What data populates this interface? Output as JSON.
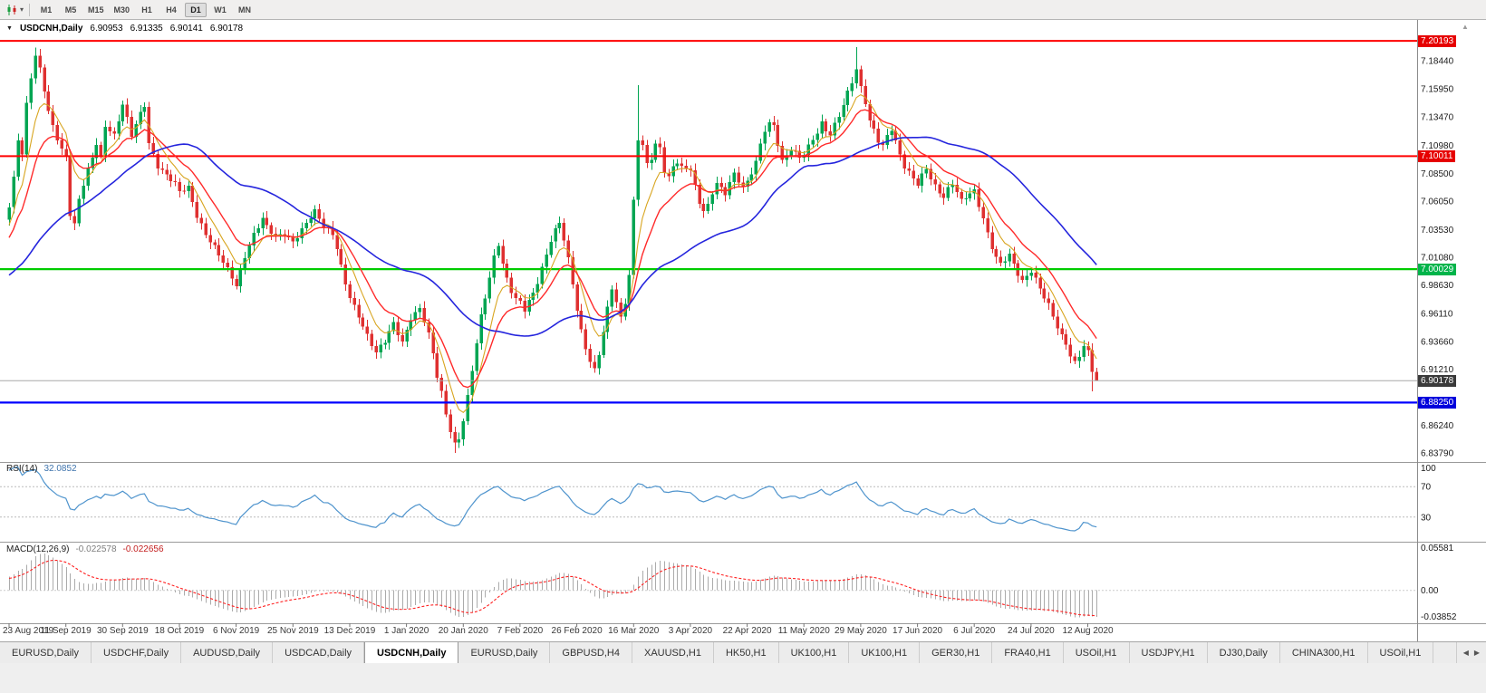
{
  "icons": {
    "collapse": "▼",
    "caret": "▾",
    "scroll_up": "▲"
  },
  "toolbar": {
    "chart_type_icon": "candlestick-chart",
    "timeframes": [
      "M1",
      "M5",
      "M15",
      "M30",
      "H1",
      "H4",
      "D1",
      "W1",
      "MN"
    ],
    "active_timeframe": "D1"
  },
  "symbol_header": {
    "title": "USDCNH,Daily",
    "open": "6.90953",
    "high": "6.91335",
    "low": "6.90141",
    "close": "6.90178"
  },
  "price_scale": {
    "labels": [
      "7.18440",
      "7.15950",
      "7.13470",
      "7.10980",
      "7.08500",
      "7.06050",
      "7.03530",
      "7.01080",
      "6.98630",
      "6.96110",
      "6.93660",
      "6.91210",
      "6.86240",
      "6.83790"
    ],
    "badges": [
      {
        "text": "7.20193",
        "value": 7.20193,
        "color": "#e60000"
      },
      {
        "text": "7.10011",
        "value": 7.10011,
        "color": "#e60000"
      },
      {
        "text": "7.00029",
        "value": 7.00029,
        "color": "#00b44a"
      },
      {
        "text": "6.90178",
        "value": 6.90178,
        "color": "#3a3a3a"
      },
      {
        "text": "6.88250",
        "value": 6.8825,
        "color": "#0000dc"
      }
    ]
  },
  "chart_data": {
    "type": "candlestick",
    "symbol": "USDCNH",
    "timeframe": "Daily",
    "last_ohlc": {
      "open": 6.90953,
      "high": 6.91335,
      "low": 6.90141,
      "close": 6.90178
    },
    "price_range_visible": [
      6.828,
      7.206
    ],
    "hlines": [
      {
        "value": 7.20193,
        "color": "#ff0000",
        "width": 2
      },
      {
        "value": 7.10011,
        "color": "#ff0000",
        "width": 2
      },
      {
        "value": 7.00029,
        "color": "#00cc00",
        "width": 2.2
      },
      {
        "value": 6.8825,
        "color": "#0000ff",
        "width": 2.2
      }
    ],
    "bid_line": {
      "value": 6.90178,
      "color": "#a8a8a8"
    },
    "num_candles": 250,
    "candle_colors": {
      "up": "#00a552",
      "down": "#df3030"
    },
    "prehistory": {
      "bars": 50,
      "from": 6.955,
      "to": 7.045
    },
    "moving_averages": [
      {
        "name": "fast-yellow",
        "period": 7,
        "type": "ema",
        "color": "#d8a520",
        "width": 1.1
      },
      {
        "name": "medium-red",
        "period": 14,
        "type": "ema",
        "color": "#ff2a2a",
        "width": 1.4
      },
      {
        "name": "slow-blue",
        "period": 40,
        "type": "sma",
        "color": "#2525dd",
        "width": 1.6
      }
    ],
    "wick_overrides": {
      "6": {
        "high": 7.196
      },
      "102": {
        "low": 6.8379
      },
      "143": {
        "low": 6.992
      },
      "144": {
        "high": 7.163
      },
      "194": {
        "high": 7.1966
      },
      "248": {
        "low": 6.8925
      },
      "249": {
        "high": 6.91335,
        "low": 6.90141
      }
    },
    "price_anchors": [
      [
        0,
        7.055
      ],
      [
        1,
        7.08
      ],
      [
        2,
        7.115
      ],
      [
        3,
        7.1
      ],
      [
        4,
        7.145
      ],
      [
        5,
        7.17
      ],
      [
        6,
        7.188
      ],
      [
        7,
        7.178
      ],
      [
        8,
        7.16
      ],
      [
        9,
        7.14
      ],
      [
        10,
        7.128
      ],
      [
        12,
        7.105
      ],
      [
        13,
        7.1
      ],
      [
        14,
        7.048
      ],
      [
        15,
        7.038
      ],
      [
        16,
        7.062
      ],
      [
        18,
        7.088
      ],
      [
        20,
        7.112
      ],
      [
        21,
        7.1
      ],
      [
        22,
        7.128
      ],
      [
        24,
        7.118
      ],
      [
        26,
        7.145
      ],
      [
        27,
        7.132
      ],
      [
        28,
        7.118
      ],
      [
        30,
        7.138
      ],
      [
        31,
        7.146
      ],
      [
        32,
        7.112
      ],
      [
        34,
        7.092
      ],
      [
        36,
        7.083
      ],
      [
        38,
        7.075
      ],
      [
        39,
        7.068
      ],
      [
        41,
        7.072
      ],
      [
        43,
        7.048
      ],
      [
        45,
        7.032
      ],
      [
        47,
        7.02
      ],
      [
        49,
        7.006
      ],
      [
        51,
        6.992
      ],
      [
        52,
        6.985
      ],
      [
        53,
        6.998
      ],
      [
        54,
        7.012
      ],
      [
        56,
        7.032
      ],
      [
        58,
        7.046
      ],
      [
        59,
        7.038
      ],
      [
        61,
        7.028
      ],
      [
        63,
        7.03
      ],
      [
        65,
        7.024
      ],
      [
        67,
        7.036
      ],
      [
        69,
        7.048
      ],
      [
        70,
        7.052
      ],
      [
        72,
        7.038
      ],
      [
        74,
        7.03
      ],
      [
        75,
        7.018
      ],
      [
        76,
        7.002
      ],
      [
        77,
        6.988
      ],
      [
        78,
        6.976
      ],
      [
        80,
        6.96
      ],
      [
        82,
        6.942
      ],
      [
        84,
        6.926
      ],
      [
        86,
        6.936
      ],
      [
        88,
        6.952
      ],
      [
        89,
        6.944
      ],
      [
        90,
        6.936
      ],
      [
        92,
        6.958
      ],
      [
        94,
        6.966
      ],
      [
        95,
        6.955
      ],
      [
        96,
        6.942
      ],
      [
        97,
        6.925
      ],
      [
        98,
        6.905
      ],
      [
        99,
        6.89
      ],
      [
        100,
        6.872
      ],
      [
        101,
        6.858
      ],
      [
        102,
        6.846
      ],
      [
        103,
        6.852
      ],
      [
        104,
        6.868
      ],
      [
        105,
        6.888
      ],
      [
        106,
        6.912
      ],
      [
        107,
        6.935
      ],
      [
        108,
        6.958
      ],
      [
        109,
        6.975
      ],
      [
        110,
        6.992
      ],
      [
        111,
        7.01
      ],
      [
        112,
        7.022
      ],
      [
        113,
        7.005
      ],
      [
        114,
        6.992
      ],
      [
        115,
        6.982
      ],
      [
        116,
        6.975
      ],
      [
        117,
        6.972
      ],
      [
        118,
        6.965
      ],
      [
        119,
        6.972
      ],
      [
        120,
        6.978
      ],
      [
        121,
        6.988
      ],
      [
        122,
        7.0
      ],
      [
        123,
        7.012
      ],
      [
        124,
        7.026
      ],
      [
        125,
        7.035
      ],
      [
        126,
        7.042
      ],
      [
        127,
        7.028
      ],
      [
        128,
        7.01
      ],
      [
        129,
        6.988
      ],
      [
        130,
        6.965
      ],
      [
        131,
        6.945
      ],
      [
        132,
        6.93
      ],
      [
        133,
        6.918
      ],
      [
        134,
        6.91
      ],
      [
        135,
        6.925
      ],
      [
        136,
        6.945
      ],
      [
        137,
        6.966
      ],
      [
        138,
        6.985
      ],
      [
        139,
        6.972
      ],
      [
        140,
        6.958
      ],
      [
        141,
        6.972
      ],
      [
        142,
        6.995
      ],
      [
        143,
        7.06
      ],
      [
        144,
        7.115
      ],
      [
        145,
        7.108
      ],
      [
        146,
        7.092
      ],
      [
        147,
        7.098
      ],
      [
        148,
        7.11
      ],
      [
        149,
        7.108
      ],
      [
        150,
        7.088
      ],
      [
        151,
        7.082
      ],
      [
        152,
        7.092
      ],
      [
        153,
        7.096
      ],
      [
        154,
        7.09
      ],
      [
        156,
        7.088
      ],
      [
        157,
        7.072
      ],
      [
        158,
        7.058
      ],
      [
        159,
        7.052
      ],
      [
        160,
        7.056
      ],
      [
        161,
        7.068
      ],
      [
        162,
        7.078
      ],
      [
        163,
        7.072
      ],
      [
        164,
        7.068
      ],
      [
        165,
        7.078
      ],
      [
        166,
        7.084
      ],
      [
        167,
        7.078
      ],
      [
        168,
        7.072
      ],
      [
        169,
        7.076
      ],
      [
        170,
        7.085
      ],
      [
        171,
        7.095
      ],
      [
        172,
        7.11
      ],
      [
        173,
        7.124
      ],
      [
        174,
        7.13
      ],
      [
        175,
        7.128
      ],
      [
        176,
        7.112
      ],
      [
        177,
        7.096
      ],
      [
        178,
        7.1
      ],
      [
        179,
        7.106
      ],
      [
        180,
        7.102
      ],
      [
        181,
        7.098
      ],
      [
        182,
        7.102
      ],
      [
        183,
        7.108
      ],
      [
        184,
        7.115
      ],
      [
        185,
        7.122
      ],
      [
        186,
        7.13
      ],
      [
        187,
        7.124
      ],
      [
        188,
        7.12
      ],
      [
        189,
        7.128
      ],
      [
        190,
        7.136
      ],
      [
        191,
        7.145
      ],
      [
        192,
        7.155
      ],
      [
        193,
        7.165
      ],
      [
        194,
        7.176
      ],
      [
        195,
        7.16
      ],
      [
        196,
        7.148
      ],
      [
        197,
        7.132
      ],
      [
        198,
        7.124
      ],
      [
        199,
        7.115
      ],
      [
        200,
        7.11
      ],
      [
        201,
        7.118
      ],
      [
        202,
        7.124
      ],
      [
        203,
        7.112
      ],
      [
        204,
        7.1
      ],
      [
        205,
        7.09
      ],
      [
        206,
        7.085
      ],
      [
        207,
        7.08
      ],
      [
        208,
        7.076
      ],
      [
        209,
        7.084
      ],
      [
        210,
        7.09
      ],
      [
        211,
        7.082
      ],
      [
        212,
        7.074
      ],
      [
        213,
        7.068
      ],
      [
        214,
        7.064
      ],
      [
        215,
        7.07
      ],
      [
        216,
        7.075
      ],
      [
        217,
        7.068
      ],
      [
        218,
        7.06
      ],
      [
        219,
        7.064
      ],
      [
        220,
        7.068
      ],
      [
        221,
        7.07
      ],
      [
        222,
        7.058
      ],
      [
        223,
        7.046
      ],
      [
        224,
        7.032
      ],
      [
        225,
        7.02
      ],
      [
        226,
        7.01
      ],
      [
        227,
        7.004
      ],
      [
        228,
        7.008
      ],
      [
        229,
        7.012
      ],
      [
        230,
        7.004
      ],
      [
        231,
        6.996
      ],
      [
        232,
        6.99
      ],
      [
        233,
        6.995
      ],
      [
        234,
        7.0
      ],
      [
        235,
        6.992
      ],
      [
        236,
        6.984
      ],
      [
        237,
        6.976
      ],
      [
        238,
        6.968
      ],
      [
        239,
        6.958
      ],
      [
        240,
        6.948
      ],
      [
        241,
        6.94
      ],
      [
        242,
        6.934
      ],
      [
        243,
        6.924
      ],
      [
        244,
        6.918
      ],
      [
        245,
        6.925
      ],
      [
        246,
        6.934
      ],
      [
        247,
        6.928
      ],
      [
        248,
        6.90953
      ],
      [
        249,
        6.90178
      ]
    ],
    "date_ticks": [
      {
        "label": "23 Aug 2019",
        "i": 0
      },
      {
        "label": "11 Sep 2019",
        "i": 13
      },
      {
        "label": "30 Sep 2019",
        "i": 26
      },
      {
        "label": "18 Oct 2019",
        "i": 39
      },
      {
        "label": "6 Nov 2019",
        "i": 52
      },
      {
        "label": "25 Nov 2019",
        "i": 65
      },
      {
        "label": "13 Dec 2019",
        "i": 78
      },
      {
        "label": "1 Jan 2020",
        "i": 91
      },
      {
        "label": "20 Jan 2020",
        "i": 104
      },
      {
        "label": "7 Feb 2020",
        "i": 117
      },
      {
        "label": "26 Feb 2020",
        "i": 130
      },
      {
        "label": "16 Mar 2020",
        "i": 143
      },
      {
        "label": "3 Apr 2020",
        "i": 156
      },
      {
        "label": "22 Apr 2020",
        "i": 169
      },
      {
        "label": "11 May 2020",
        "i": 182
      },
      {
        "label": "29 May 2020",
        "i": 195
      },
      {
        "label": "17 Jun 2020",
        "i": 208
      },
      {
        "label": "6 Jul 2020",
        "i": 221
      },
      {
        "label": "24 Jul 2020",
        "i": 234
      },
      {
        "label": "12 Aug 2020",
        "i": 247
      }
    ]
  },
  "rsi_panel": {
    "name": "RSI(14)",
    "value": "32.0852",
    "period": 14,
    "line_color": "#4f94cd",
    "guide_levels": [
      70,
      30
    ],
    "axis_labels": [
      {
        "text": "100",
        "value": 100
      },
      {
        "text": "70",
        "value": 70
      },
      {
        "text": "30",
        "value": 30
      }
    ]
  },
  "macd_panel": {
    "name": "MACD(12,26,9)",
    "main_value": "-0.022578",
    "signal_value": "-0.022656",
    "fast": 12,
    "slow": 26,
    "signal": 9,
    "histogram_color": "#ababab",
    "signal_color": "#ff2222",
    "axis_labels": [
      {
        "text": "0.05581",
        "value": 0.05581
      },
      {
        "text": "0.00",
        "value": 0
      },
      {
        "text": "-0.03852",
        "value": -0.03852
      }
    ]
  },
  "tabbar": {
    "tabs": [
      "EURUSD,Daily",
      "USDCHF,Daily",
      "AUDUSD,Daily",
      "USDCAD,Daily",
      "USDCNH,Daily",
      "EURUSD,Daily",
      "GBPUSD,H4",
      "XAUUSD,H1",
      "HK50,H1",
      "UK100,H1",
      "UK100,H1",
      "GER30,H1",
      "FRA40,H1",
      "USOil,H1",
      "USDJPY,H1",
      "DJ30,Daily",
      "CHINA300,H1",
      "USOil,H1"
    ],
    "active_index": 4,
    "scroll_left_icon": "◀",
    "scroll_right_icon": "▶"
  }
}
